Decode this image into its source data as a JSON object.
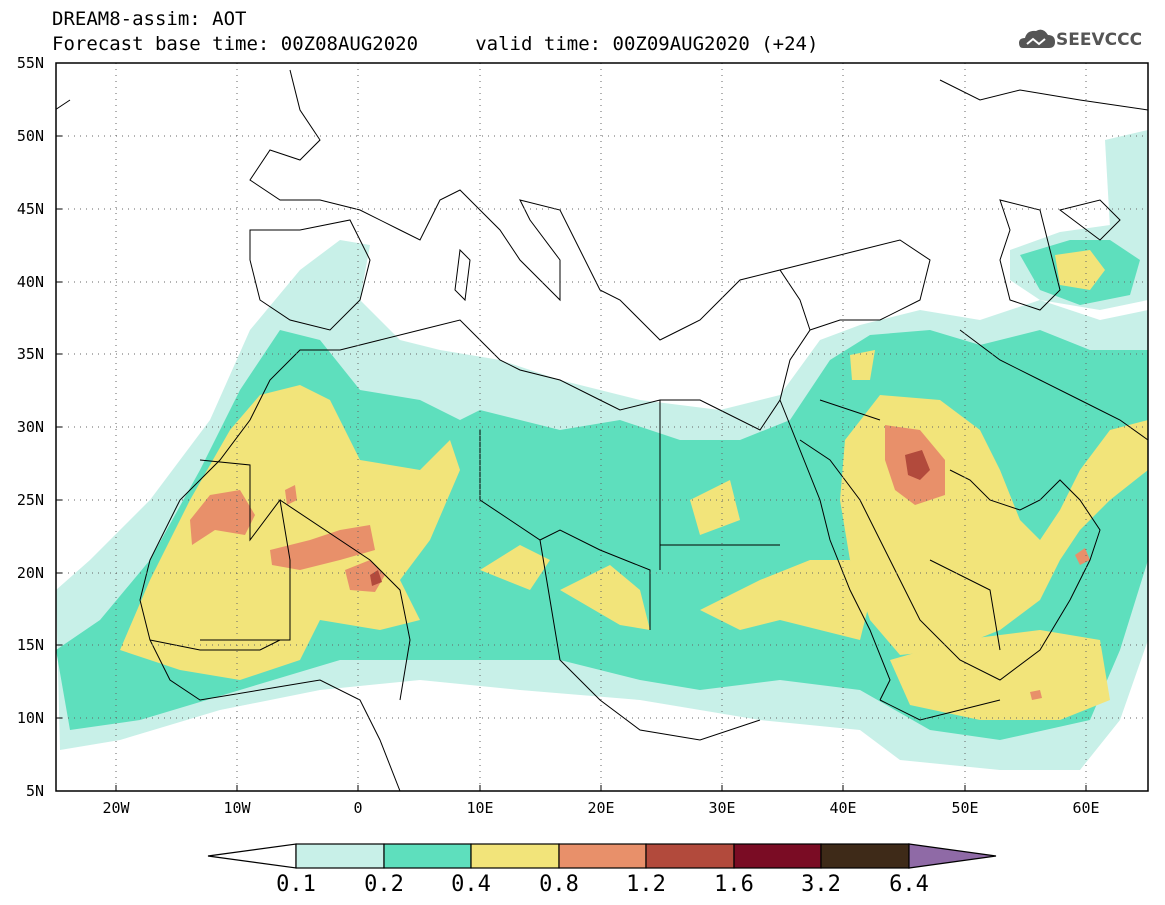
{
  "header": {
    "line1": "DREAM8-assim: AOT",
    "line2": "Forecast base time: 00Z08AUG2020     valid time: 00Z09AUG2020 (+24)"
  },
  "logo": {
    "text": "SEEVCCC",
    "icon": "cloud-logo-icon",
    "color": "#555555"
  },
  "map": {
    "lon_range": [
      -25,
      65
    ],
    "lat_range": [
      5,
      55
    ],
    "lat_ticks": [
      "55N",
      "50N",
      "45N",
      "40N",
      "35N",
      "30N",
      "25N",
      "20N",
      "15N",
      "10N",
      "5N"
    ],
    "lat_values": [
      55,
      50,
      45,
      40,
      35,
      30,
      25,
      20,
      15,
      10,
      5
    ],
    "lon_ticks": [
      "20W",
      "10W",
      "0",
      "10E",
      "20E",
      "30E",
      "40E",
      "50E",
      "60E"
    ],
    "lon_values": [
      -20,
      -10,
      0,
      10,
      20,
      30,
      40,
      50,
      60
    ],
    "grid": "dotted"
  },
  "colorbar": {
    "labels": [
      "0.1",
      "0.2",
      "0.4",
      "0.8",
      "1.2",
      "1.6",
      "3.2",
      "6.4"
    ],
    "colors": [
      "#ffffff",
      "#c8f0e8",
      "#5edfbd",
      "#f2e47a",
      "#e8906a",
      "#b24a3c",
      "#7a0c24",
      "#3e2a18",
      "#8f6aa6"
    ]
  }
}
